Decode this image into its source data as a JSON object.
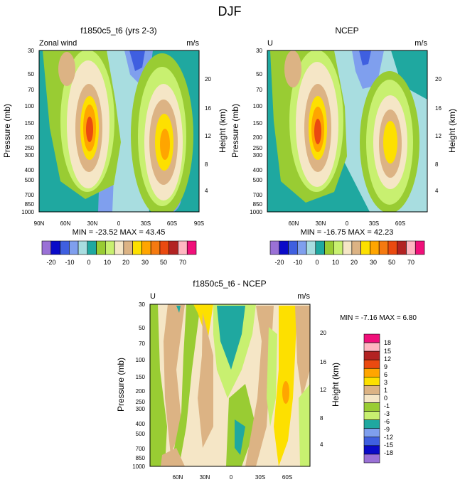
{
  "page_title": "DJF",
  "colors": {
    "plot_bg": "#a8dde0",
    "frame": "#000000"
  },
  "chart_data": [
    {
      "type": "contour",
      "title": "f1850c5_t6 (yrs 2-3)",
      "left_label": "Zonal wind",
      "right_label": "m/s",
      "ylabel": "Pressure (mb)",
      "ylabel_right": "Height (km)",
      "y_ticks": [
        "30",
        "50",
        "70",
        "100",
        "150",
        "200",
        "250",
        "300",
        "400",
        "500",
        "700",
        "850",
        "1000"
      ],
      "y_right_ticks": [
        "20",
        "16",
        "12",
        "8",
        "4"
      ],
      "x_ticks": [
        "90N",
        "60N",
        "30N",
        "0",
        "30S",
        "60S",
        "90S"
      ],
      "stats": "MIN = -23.52   MAX =  43.45",
      "levels": [
        -25,
        -20,
        -15,
        -10,
        -5,
        0,
        5,
        10,
        15,
        20,
        25,
        30,
        35,
        40,
        50,
        60,
        70
      ],
      "colorbar_labels": [
        "-20",
        "-10",
        "0",
        "10",
        "20",
        "30",
        "50",
        "70"
      ],
      "jets": {
        "north_max": 43.45,
        "south_max": 35,
        "strat_min": -23.52
      }
    },
    {
      "type": "contour",
      "title": "NCEP",
      "left_label": "U",
      "right_label": "m/s",
      "ylabel": "Pressure (mb)",
      "ylabel_right": "Height (km)",
      "y_ticks": [
        "30",
        "50",
        "70",
        "100",
        "150",
        "200",
        "250",
        "300",
        "400",
        "500",
        "700",
        "850",
        "1000"
      ],
      "y_right_ticks": [
        "20",
        "16",
        "12",
        "8",
        "4"
      ],
      "x_ticks": [
        "60N",
        "30N",
        "0",
        "30S",
        "60S"
      ],
      "stats": "MIN = -16.75   MAX =  42.23",
      "levels": [
        -25,
        -20,
        -15,
        -10,
        -5,
        0,
        5,
        10,
        15,
        20,
        25,
        30,
        35,
        40,
        50,
        60,
        70
      ],
      "colorbar_labels": [
        "-20",
        "-10",
        "0",
        "10",
        "20",
        "30",
        "50",
        "70"
      ],
      "jets": {
        "north_max": 42.23,
        "south_max": 30,
        "strat_min": -16.75
      }
    },
    {
      "type": "contour",
      "title": "f1850c5_t6 - NCEP",
      "left_label": "U",
      "right_label": "m/s",
      "ylabel": "Pressure (mb)",
      "ylabel_right": "Height (km)",
      "y_ticks": [
        "30",
        "50",
        "70",
        "100",
        "150",
        "200",
        "250",
        "300",
        "400",
        "500",
        "700",
        "850",
        "1000"
      ],
      "y_right_ticks": [
        "20",
        "16",
        "12",
        "8",
        "4"
      ],
      "x_ticks": [
        "60N",
        "30N",
        "0",
        "30S",
        "60S"
      ],
      "stats": "MIN =  -7.16   MAX =   6.80",
      "levels": [
        -18,
        -15,
        -12,
        -9,
        -6,
        -3,
        -1,
        0,
        1,
        3,
        6,
        9,
        12,
        15,
        18
      ],
      "colorbar_labels": [
        "18",
        "15",
        "12",
        "9",
        "6",
        "3",
        "1",
        "0",
        "-1",
        "-3",
        "-6",
        "-9",
        "-12",
        "-15",
        "-18"
      ]
    }
  ],
  "palette_main": [
    "#9a71d6",
    "#0a0ac8",
    "#3f5fe0",
    "#7f9fee",
    "#a8dde0",
    "#1fa8a0",
    "#99cc33",
    "#c8f070",
    "#f5e6c6",
    "#dcb384",
    "#fde000",
    "#ffa500",
    "#f57a10",
    "#ea4a10",
    "#b22222",
    "#ffb6c1",
    "#f0107a"
  ],
  "palette_diff": [
    "#9a71d6",
    "#0a0ac8",
    "#3f5fe0",
    "#7f9fee",
    "#1fa8a0",
    "#c8f070",
    "#99cc33",
    "#f5e6c6",
    "#dcb384",
    "#fde000",
    "#ffa500",
    "#ea4a10",
    "#b22222",
    "#ffb6c1",
    "#f0107a"
  ]
}
